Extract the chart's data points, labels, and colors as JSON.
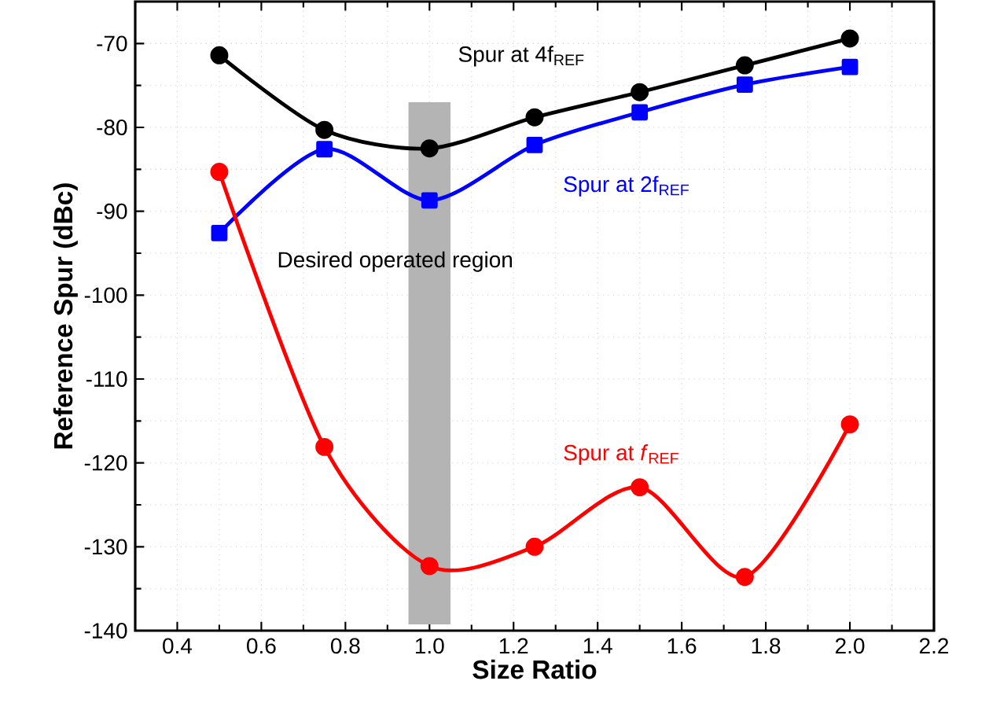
{
  "chart_data": {
    "type": "line",
    "xlabel": "Size Ratio",
    "ylabel": "Reference Spur (dBc)",
    "x": [
      0.5,
      0.75,
      1.0,
      1.25,
      1.5,
      1.75,
      2.0
    ],
    "series": [
      {
        "name": "Spur at 4f$_{REF}$",
        "color": "#000000",
        "marker": "circle",
        "values": [
          -71.4,
          -80.3,
          -82.5,
          -78.8,
          -75.8,
          -72.6,
          -69.4
        ]
      },
      {
        "name": "Spur at 2f$_{REF}$",
        "color": "#0000ff",
        "marker": "square",
        "values": [
          -92.6,
          -82.6,
          -88.7,
          -82.1,
          -78.2,
          -74.9,
          -72.8
        ]
      },
      {
        "name": "Spur at *f*$_{REF}$",
        "color": "#ff0000",
        "marker": "circle",
        "values": [
          -85.3,
          -118.1,
          -132.3,
          -130.0,
          -122.9,
          -133.6,
          -115.4
        ]
      }
    ],
    "bands": [
      {
        "axis": "x",
        "from": 0.95,
        "to": 1.05,
        "label": "Desired operated region",
        "color": "#b4b4b4"
      }
    ],
    "xlim": [
      0.3,
      2.2
    ],
    "xticks": [
      0.4,
      0.6,
      0.8,
      {
        "value": 1.0,
        "label": "1.0"
      },
      1.2,
      1.4,
      1.6,
      1.8,
      {
        "value": 2.0,
        "label": "2.0"
      },
      2.2
    ],
    "ylim": [
      -140,
      -65
    ],
    "yticks": [
      -140,
      -130,
      -120,
      -110,
      -100,
      -90,
      -80,
      -70
    ],
    "grid": true,
    "legend": false,
    "line_style": "solid"
  }
}
